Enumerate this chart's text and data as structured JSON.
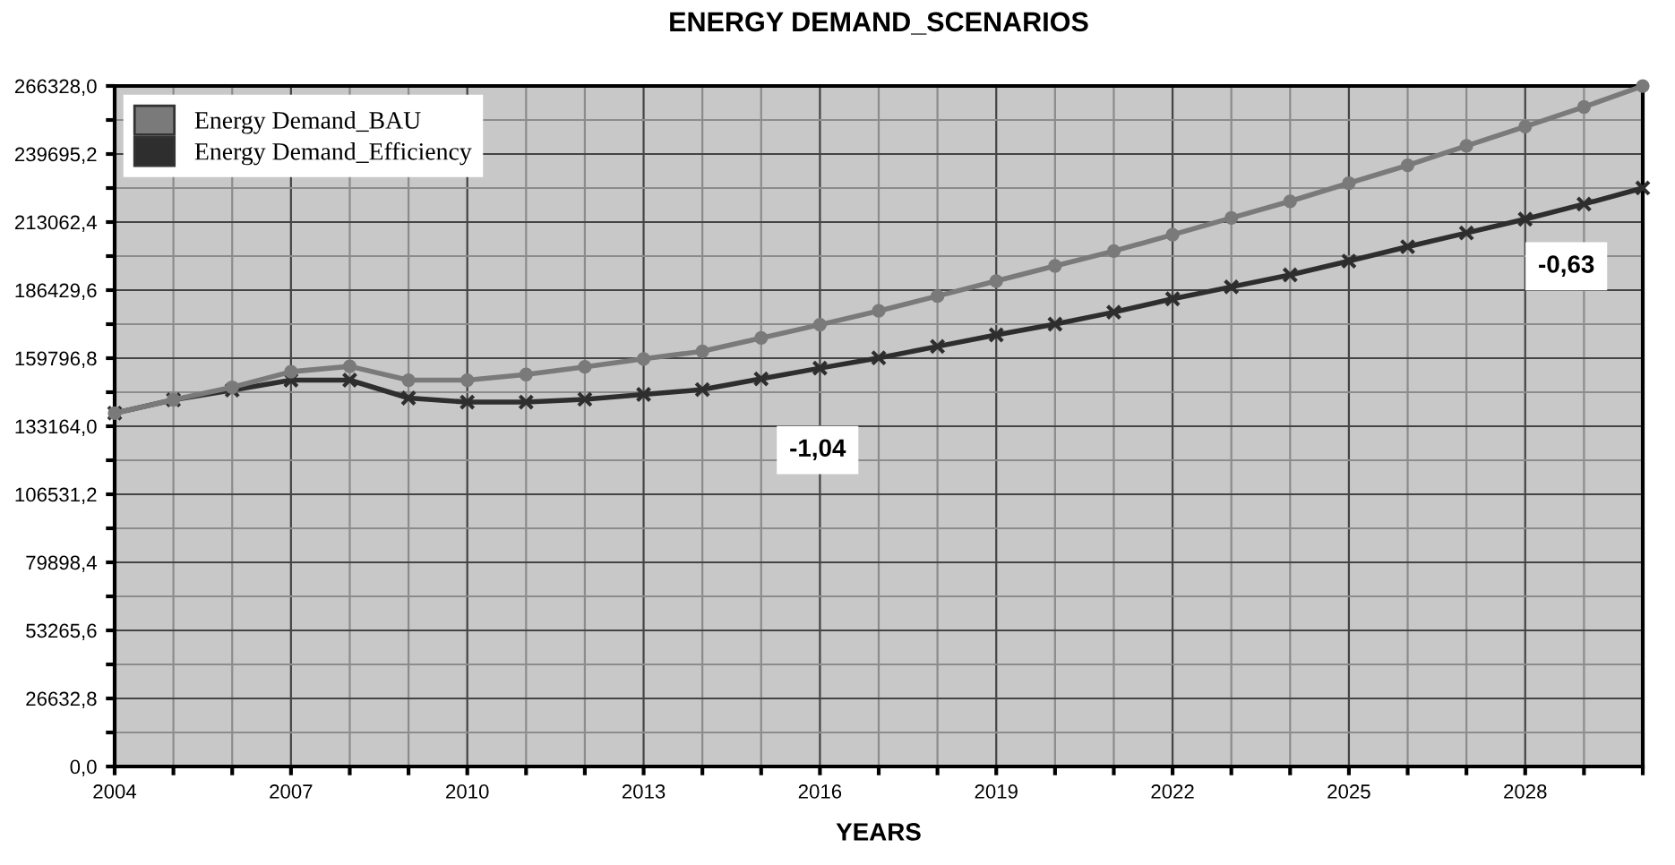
{
  "chart_data": {
    "type": "line",
    "title": "ENERGY DEMAND_SCENARIOS",
    "xlabel": "YEARS",
    "x": [
      2004,
      2005,
      2006,
      2007,
      2008,
      2009,
      2010,
      2011,
      2012,
      2013,
      2014,
      2015,
      2016,
      2017,
      2018,
      2019,
      2020,
      2021,
      2022,
      2023,
      2024,
      2025,
      2026,
      2027,
      2028,
      2029,
      2030
    ],
    "series": [
      {
        "name": "Energy Demand_BAU",
        "color": "#7a7a7a",
        "marker": "circle",
        "values": [
          138300,
          143500,
          148400,
          154500,
          156600,
          151200,
          151200,
          153400,
          156400,
          159500,
          162500,
          167700,
          172900,
          178300,
          184100,
          190000,
          195900,
          201700,
          208100,
          214700,
          221200,
          228300,
          235300,
          242900,
          250400,
          258100,
          266300
        ]
      },
      {
        "name": "Energy Demand_Efficiency",
        "color": "#2e2e2e",
        "marker": "cross",
        "values": [
          138300,
          143500,
          147300,
          151200,
          151200,
          144200,
          142600,
          142600,
          143700,
          145600,
          147500,
          151700,
          155900,
          159900,
          164400,
          168900,
          173100,
          177800,
          183000,
          187700,
          192400,
          197800,
          203400,
          208800,
          214200,
          220100,
          226400
        ]
      }
    ],
    "annotations": [
      "-1,04",
      "-0,63"
    ],
    "xlim": [
      2004,
      2030
    ],
    "xticks": [
      2004,
      {
        "value": 2005,
        "label": null
      },
      {
        "value": 2006,
        "label": null
      },
      2007,
      {
        "value": 2008,
        "label": null
      },
      {
        "value": 2009,
        "label": null
      },
      2010,
      {
        "value": 2011,
        "label": null
      },
      {
        "value": 2012,
        "label": null
      },
      2013,
      {
        "value": 2014,
        "label": null
      },
      {
        "value": 2015,
        "label": null
      },
      2016,
      {
        "value": 2017,
        "label": null
      },
      {
        "value": 2018,
        "label": null
      },
      2019,
      {
        "value": 2020,
        "label": null
      },
      {
        "value": 2021,
        "label": null
      },
      2022,
      {
        "value": 2023,
        "label": null
      },
      {
        "value": 2024,
        "label": null
      },
      2025,
      {
        "value": 2026,
        "label": null
      },
      {
        "value": 2027,
        "label": null
      },
      2028,
      {
        "value": 2029,
        "label": null
      },
      {
        "value": 2030,
        "label": null
      }
    ],
    "ylim": [
      0,
      266328
    ],
    "yticks": [
      {
        "value": 0,
        "label": "0,0"
      },
      {
        "value": 13316.4,
        "label": null
      },
      {
        "value": 26632.8,
        "label": "26632,8"
      },
      {
        "value": 39949.2,
        "label": null
      },
      {
        "value": 53265.6,
        "label": "53265,6"
      },
      {
        "value": 66582,
        "label": null
      },
      {
        "value": 79898.4,
        "label": "79898,4"
      },
      {
        "value": 93214.8,
        "label": null
      },
      {
        "value": 106531.2,
        "label": "106531,2"
      },
      {
        "value": 119847.6,
        "label": null
      },
      {
        "value": 133164,
        "label": "133164,0"
      },
      {
        "value": 146480.4,
        "label": null
      },
      {
        "value": 159796.8,
        "label": "159796,8"
      },
      {
        "value": 173113.2,
        "label": null
      },
      {
        "value": 186429.6,
        "label": "186429,6"
      },
      {
        "value": 199746,
        "label": null
      },
      {
        "value": 213062.4,
        "label": "213062,4"
      },
      {
        "value": 226378.8,
        "label": null
      },
      {
        "value": 239695.2,
        "label": "239695,2"
      },
      {
        "value": 253011.6,
        "label": null
      },
      {
        "value": 266328,
        "label": "266328,0"
      }
    ],
    "grid": true,
    "legend": "top left",
    "line_style": "solid"
  }
}
